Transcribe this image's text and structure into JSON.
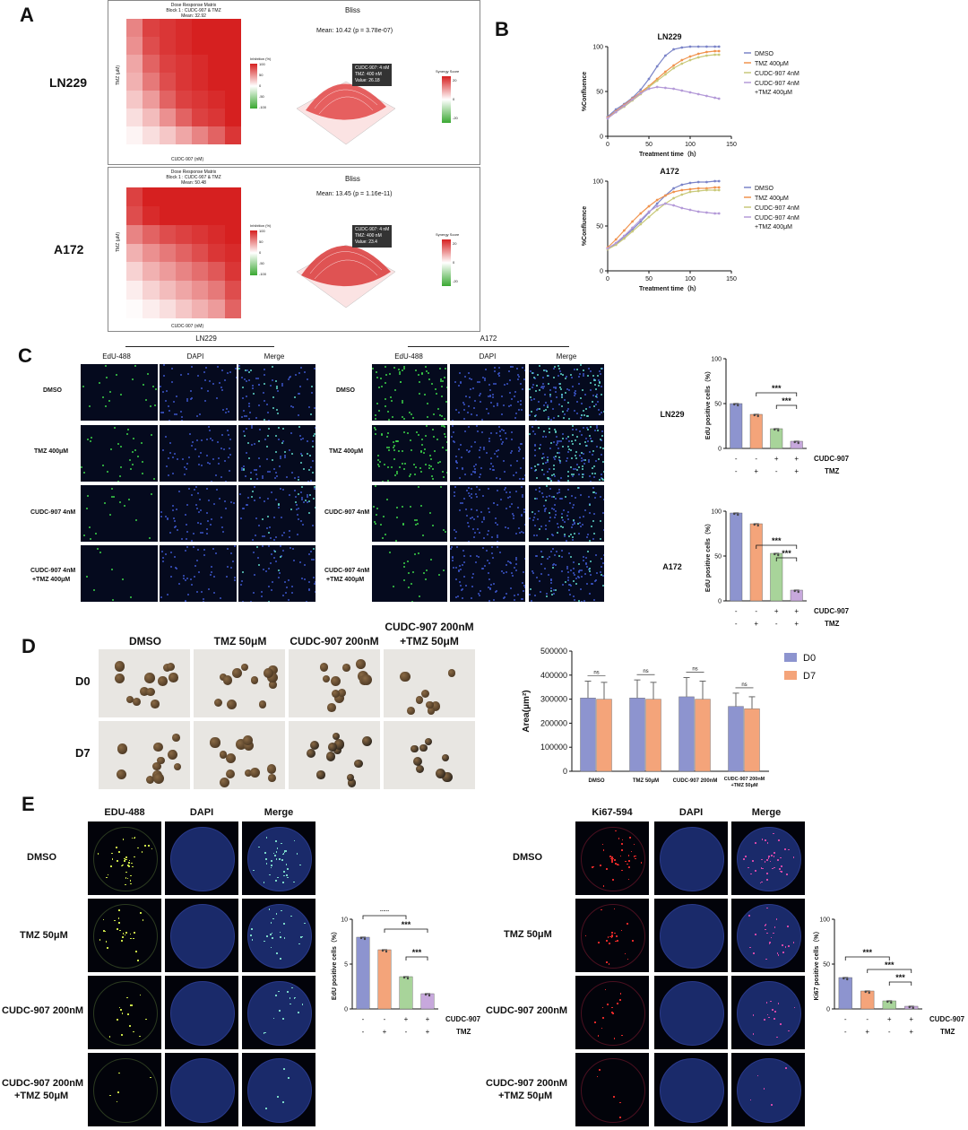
{
  "panels": {
    "A": "A",
    "B": "B",
    "C": "C",
    "D": "D",
    "E": "E"
  },
  "panelA": {
    "rows": [
      {
        "cell": "LN229",
        "matrix_title": "Dose Response Matrix",
        "block": "Block 1 : CUDC-907 & TMZ",
        "mean": "Mean: 32.92",
        "xaxis": "CUDC-907 (nM)",
        "yaxis": "TMZ (μM)",
        "inhib_label": "Inhibition (%)",
        "bliss": "Bliss",
        "bliss_mean": "Mean: 10.42 (p = 3.78e-07)",
        "tip1": "CUDC-907: 4 nM",
        "tip2": "TMZ: 400 nM",
        "tip3": "Value: 26.18",
        "synergy": "Synergy Score",
        "syn_ticks": [
          "20",
          "0",
          "-20"
        ],
        "inh_ticks": [
          "100",
          "50",
          "0",
          "-50",
          "-100"
        ]
      },
      {
        "cell": "A172",
        "matrix_title": "Dose Response Matrix",
        "block": "Block 1 : CUDC-907 & TMZ",
        "mean": "Mean: 50.48",
        "xaxis": "CUDC-907 (nM)",
        "yaxis": "TMZ (μM)",
        "inhib_label": "Inhibition (%)",
        "bliss": "Bliss",
        "bliss_mean": "Mean: 13.45 (p = 1.16e-11)",
        "tip1": "CUDC-907: 4 nM",
        "tip2": "TMZ: 400 nM",
        "tip3": "Value: 23.4",
        "synergy": "Synergy Score",
        "syn_ticks": [
          "20",
          "0",
          "-20"
        ],
        "inh_ticks": [
          "100",
          "50",
          "0",
          "-50",
          "-100"
        ]
      }
    ]
  },
  "panelB": {
    "charts": [
      {
        "title": "LN229",
        "ylabel": "%Confluence",
        "xlabel": "Treatment time（h）",
        "legend": [
          "DMSO",
          "TMZ 400μM",
          "CUDC-907 4nM",
          "CUDC-907 4nM",
          "+TMZ 400μM"
        ],
        "yticks": [
          "0",
          "50",
          "100"
        ],
        "xticks": [
          "0",
          "50",
          "100",
          "150"
        ]
      },
      {
        "title": "A172",
        "ylabel": "%Confluence",
        "xlabel": "Treatment time（h）",
        "legend": [
          "DMSO",
          "TMZ 400μM",
          "CUDC-907 4nM",
          "CUDC-907 4nM",
          "+TMZ 400μM"
        ],
        "yticks": [
          "0",
          "50",
          "100"
        ],
        "xticks": [
          "0",
          "50",
          "100",
          "150"
        ]
      }
    ]
  },
  "panelC": {
    "groups": [
      {
        "title": "LN229",
        "cols": [
          "EdU-488",
          "DAPI",
          "Merge"
        ]
      },
      {
        "title": "A172",
        "cols": [
          "EdU-488",
          "DAPI",
          "Merge"
        ]
      }
    ],
    "rowlabels": [
      "DMSO",
      "TMZ 400μM",
      "CUDC-907 4nM",
      "CUDC-907 4nM",
      "+TMZ 400μM"
    ],
    "bars": [
      {
        "cell": "LN229",
        "ylabel": "EdU positive cells（%）",
        "yticks": [
          "0",
          "50",
          "100"
        ],
        "sig": [
          "***",
          "***"
        ],
        "row1": [
          "-",
          "-",
          "+",
          "+"
        ],
        "row2": [
          "-",
          "+",
          "-",
          "+"
        ],
        "lab1": "CUDC-907",
        "lab2": "TMZ"
      },
      {
        "cell": "A172",
        "ylabel": "EdU positive cells（%）",
        "yticks": [
          "0",
          "50",
          "100"
        ],
        "sig": [
          "***",
          "***"
        ],
        "row1": [
          "-",
          "-",
          "+",
          "+"
        ],
        "row2": [
          "-",
          "+",
          "-",
          "+"
        ],
        "lab1": "CUDC-907",
        "lab2": "TMZ"
      }
    ]
  },
  "panelD": {
    "cols": [
      "DMSO",
      "TMZ 50μM",
      "CUDC-907 200nM",
      "CUDC-907 200nM",
      "+TMZ 50μM"
    ],
    "rows": [
      "D0",
      "D7"
    ],
    "chart": {
      "ylabel": "Area(μm²)",
      "yticks": [
        "0",
        "100000",
        "200000",
        "300000",
        "400000",
        "500000"
      ],
      "xcats": [
        "DMSO",
        "TMZ 50μM",
        "CUDC-907 200nM",
        "CUDC-907 200nM",
        "+TMZ 50μM"
      ],
      "legend": [
        "D0",
        "D7"
      ],
      "ns": "ns"
    }
  },
  "panelE": {
    "left": {
      "cols": [
        "EDU-488",
        "DAPI",
        "Merge"
      ],
      "rows": [
        "DMSO",
        "TMZ 50μM",
        "CUDC-907 200nM",
        "CUDC-907 200nM",
        "+TMZ 50μM"
      ],
      "ylabel": "EdU positive cells（%）",
      "yticks": [
        "0",
        "5",
        "10"
      ],
      "sig": [
        "***",
        "***",
        "***"
      ],
      "row1": [
        "-",
        "-",
        "+",
        "+"
      ],
      "row2": [
        "-",
        "+",
        "-",
        "+"
      ],
      "lab1": "CUDC-907",
      "lab2": "TMZ"
    },
    "right": {
      "cols": [
        "Ki67-594",
        "DAPI",
        "Merge"
      ],
      "rows": [
        "DMSO",
        "TMZ 50μM",
        "CUDC-907 200nM",
        "CUDC-907 200nM",
        "+TMZ 50μM"
      ],
      "ylabel": "Ki67 positive cells（%）",
      "yticks": [
        "0",
        "50",
        "100"
      ],
      "sig": [
        "***",
        "***",
        "***"
      ],
      "row1": [
        "-",
        "-",
        "+",
        "+"
      ],
      "row2": [
        "-",
        "+",
        "-",
        "+"
      ],
      "lab1": "CUDC-907",
      "lab2": "TMZ"
    }
  },
  "chart_data": [
    {
      "type": "line",
      "title": "LN229",
      "xlabel": "Treatment time（h）",
      "ylabel": "%Confluence",
      "xlim": [
        0,
        150
      ],
      "ylim": [
        0,
        100
      ],
      "x": [
        0,
        10,
        20,
        30,
        40,
        50,
        60,
        70,
        80,
        90,
        100,
        110,
        120,
        130,
        135
      ],
      "series": [
        {
          "name": "DMSO",
          "values": [
            22,
            30,
            36,
            43,
            52,
            64,
            78,
            90,
            97,
            99,
            100,
            100,
            100,
            100,
            100
          ]
        },
        {
          "name": "TMZ 400μM",
          "values": [
            21,
            28,
            35,
            42,
            49,
            56,
            64,
            72,
            79,
            85,
            89,
            92,
            94,
            95,
            95
          ]
        },
        {
          "name": "CUDC-907 4nM",
          "values": [
            20,
            27,
            33,
            40,
            47,
            55,
            62,
            69,
            76,
            81,
            85,
            88,
            90,
            91,
            91
          ]
        },
        {
          "name": "CUDC-907 4nM +TMZ 400μM",
          "values": [
            20,
            27,
            34,
            41,
            48,
            53,
            55,
            54,
            53,
            51,
            49,
            47,
            45,
            43,
            42
          ]
        }
      ]
    },
    {
      "type": "line",
      "title": "A172",
      "xlabel": "Treatment time（h）",
      "ylabel": "%Confluence",
      "xlim": [
        0,
        150
      ],
      "ylim": [
        0,
        100
      ],
      "x": [
        0,
        10,
        20,
        30,
        40,
        50,
        60,
        70,
        80,
        90,
        100,
        110,
        120,
        130,
        135
      ],
      "series": [
        {
          "name": "DMSO",
          "values": [
            25,
            30,
            38,
            46,
            55,
            65,
            75,
            84,
            92,
            96,
            98,
            99,
            99,
            100,
            100
          ]
        },
        {
          "name": "TMZ 400μM",
          "values": [
            26,
            35,
            45,
            55,
            64,
            72,
            79,
            84,
            88,
            90,
            91,
            92,
            92,
            93,
            93
          ]
        },
        {
          "name": "CUDC-907 4nM",
          "values": [
            24,
            29,
            36,
            44,
            52,
            60,
            68,
            75,
            81,
            85,
            88,
            89,
            90,
            90,
            90
          ]
        },
        {
          "name": "CUDC-907 4nM +TMZ 400μM",
          "values": [
            25,
            31,
            39,
            48,
            57,
            66,
            72,
            75,
            73,
            70,
            68,
            66,
            65,
            64,
            64
          ]
        }
      ]
    },
    {
      "type": "bar",
      "title": "LN229",
      "ylabel": "EdU positive cells（%）",
      "ylim": [
        0,
        100
      ],
      "categories": [
        "1",
        "2",
        "3",
        "4"
      ],
      "values": [
        50,
        38,
        22,
        8
      ]
    },
    {
      "type": "bar",
      "title": "A172",
      "ylabel": "EdU positive cells（%）",
      "ylim": [
        0,
        100
      ],
      "categories": [
        "1",
        "2",
        "3",
        "4"
      ],
      "values": [
        98,
        86,
        53,
        12
      ]
    },
    {
      "type": "bar",
      "ylabel": "Area(μm²)",
      "ylim": [
        0,
        500000
      ],
      "categories": [
        "DMSO",
        "TMZ 50μM",
        "CUDC-907 200nM",
        "CUDC-907 200nM +TMZ 50μM"
      ],
      "series": [
        {
          "name": "D0",
          "values": [
            305000,
            305000,
            310000,
            270000
          ],
          "errors": [
            70000,
            75000,
            80000,
            55000
          ]
        },
        {
          "name": "D7",
          "values": [
            300000,
            300000,
            300000,
            260000
          ],
          "errors": [
            70000,
            70000,
            75000,
            50000
          ]
        }
      ]
    },
    {
      "type": "bar",
      "ylabel": "EdU positive cells（%）",
      "ylim": [
        0,
        10
      ],
      "categories": [
        "1",
        "2",
        "3",
        "4"
      ],
      "values": [
        8,
        6.6,
        3.6,
        1.7
      ]
    },
    {
      "type": "bar",
      "ylabel": "Ki67 positive cells（%）",
      "ylim": [
        0,
        100
      ],
      "categories": [
        "1",
        "2",
        "3",
        "4"
      ],
      "values": [
        35,
        20,
        9,
        3
      ]
    }
  ]
}
